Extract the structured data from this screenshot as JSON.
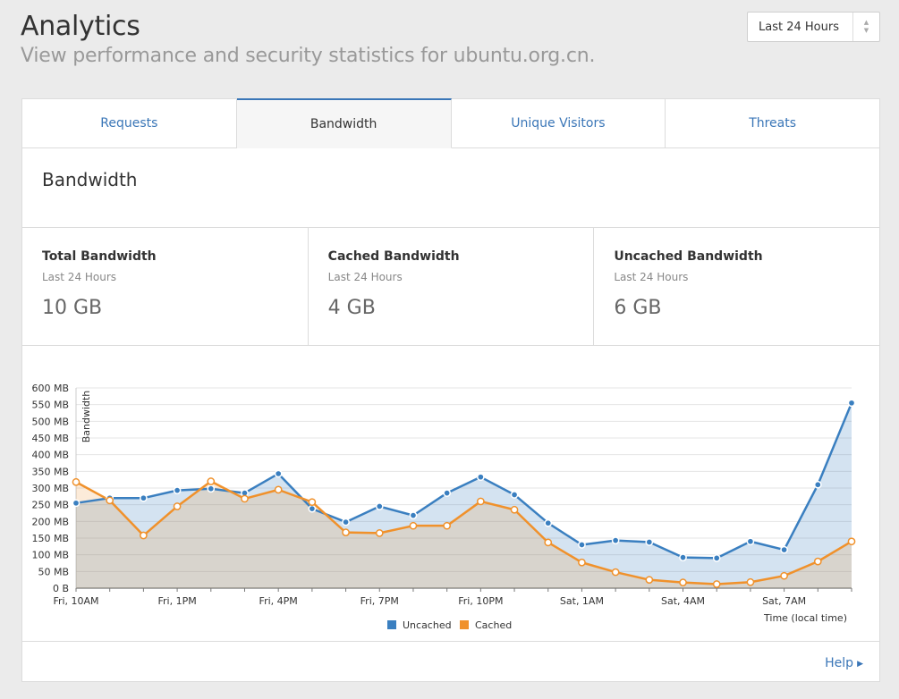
{
  "header": {
    "title": "Analytics",
    "subtitle": "View performance and security statistics for ubuntu.org.cn."
  },
  "range_select": {
    "label": "Last 24 Hours"
  },
  "tabs": [
    {
      "label": "Requests",
      "active": false
    },
    {
      "label": "Bandwidth",
      "active": true
    },
    {
      "label": "Unique Visitors",
      "active": false
    },
    {
      "label": "Threats",
      "active": false
    }
  ],
  "section": {
    "title": "Bandwidth"
  },
  "stats": [
    {
      "title": "Total Bandwidth",
      "sub": "Last 24 Hours",
      "value": "10 GB"
    },
    {
      "title": "Cached Bandwidth",
      "sub": "Last 24 Hours",
      "value": "4 GB"
    },
    {
      "title": "Uncached Bandwidth",
      "sub": "Last 24 Hours",
      "value": "6 GB"
    }
  ],
  "footer": {
    "help": "Help"
  },
  "colors": {
    "uncached": "#3a7fc0",
    "cached": "#f0912b",
    "accent": "#3a76b7"
  },
  "chart_data": {
    "type": "area",
    "ylabel": "Bandwidth",
    "xlabel": "Time (local time)",
    "y_unit": "MB",
    "ylim": [
      0,
      600
    ],
    "y_ticks": [
      "0 B",
      "50 MB",
      "100 MB",
      "150 MB",
      "200 MB",
      "250 MB",
      "300 MB",
      "350 MB",
      "400 MB",
      "450 MB",
      "500 MB",
      "550 MB",
      "600 MB"
    ],
    "x_tick_labels": [
      "Fri, 10AM",
      "Fri, 1PM",
      "Fri, 4PM",
      "Fri, 7PM",
      "Fri, 10PM",
      "Sat, 1AM",
      "Sat, 4AM",
      "Sat, 7AM"
    ],
    "x": [
      "Fri, 10AM",
      "Fri, 11AM",
      "Fri, 12PM",
      "Fri, 1PM",
      "Fri, 2PM",
      "Fri, 3PM",
      "Fri, 4PM",
      "Fri, 5PM",
      "Fri, 6PM",
      "Fri, 7PM",
      "Fri, 8PM",
      "Fri, 9PM",
      "Fri, 10PM",
      "Fri, 11PM",
      "Sat, 12AM",
      "Sat, 1AM",
      "Sat, 2AM",
      "Sat, 3AM",
      "Sat, 4AM",
      "Sat, 5AM",
      "Sat, 6AM",
      "Sat, 7AM",
      "Sat, 8AM",
      "Sat, 9AM"
    ],
    "grid": true,
    "legend_position": "bottom",
    "series": [
      {
        "name": "Uncached",
        "values": [
          255,
          270,
          270,
          293,
          298,
          285,
          343,
          238,
          198,
          245,
          218,
          285,
          333,
          280,
          195,
          130,
          143,
          138,
          92,
          90,
          140,
          115,
          310,
          555
        ]
      },
      {
        "name": "Cached",
        "values": [
          318,
          263,
          158,
          245,
          320,
          268,
          295,
          258,
          167,
          165,
          187,
          187,
          260,
          235,
          137,
          77,
          48,
          25,
          17,
          12,
          18,
          37,
          80,
          140
        ]
      }
    ]
  }
}
